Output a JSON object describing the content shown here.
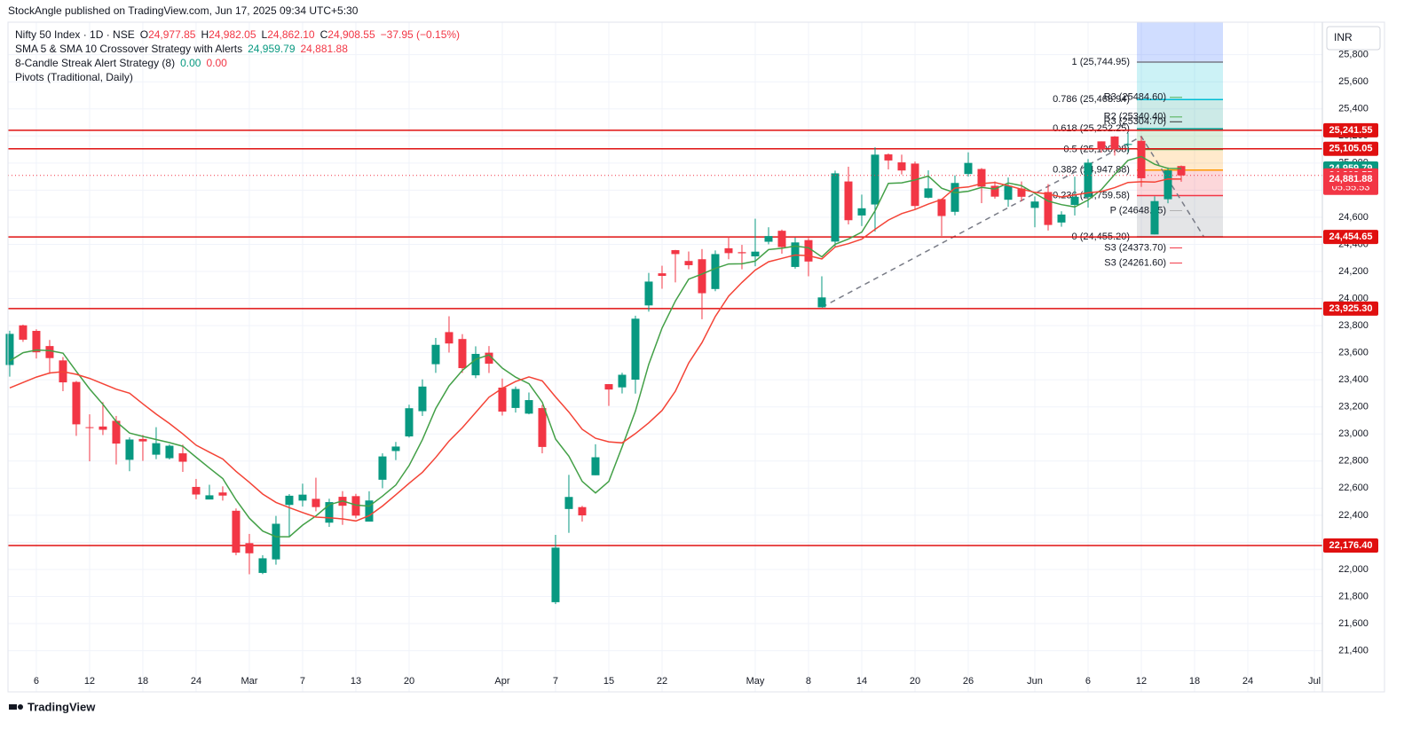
{
  "header": {
    "publisher": "StockAngle published on TradingView.com, Jun 17, 2025 09:34 UTC+5:30"
  },
  "legend": {
    "symbol": "Nifty 50 Index · 1D · NSE",
    "quote": [
      {
        "key": "O",
        "value": "24,977.85"
      },
      {
        "key": "H",
        "value": "24,982.05"
      },
      {
        "key": "L",
        "value": "24,862.10"
      },
      {
        "key": "C",
        "value": "24,908.55"
      }
    ],
    "change": "−37.95 (−0.15%)",
    "indicators": [
      {
        "name": "SMA 5 & SMA 10 Crossover Strategy with Alerts",
        "values": [
          "24,959.79",
          "24,881.88"
        ]
      },
      {
        "name": "8-Candle Streak Alert Strategy (8)",
        "values": [
          "0.00",
          "0.00"
        ]
      },
      {
        "name": "Pivots (Traditional, Daily)",
        "values": []
      }
    ]
  },
  "currency": "INR",
  "footer": "TradingView",
  "chart_data": {
    "type": "candlestick",
    "up_color": "#089981",
    "down_color": "#f23645",
    "open": [
      23509,
      23802,
      23761,
      23649,
      23543,
      23384,
      23050,
      23055,
      23097,
      22809,
      22963,
      22847,
      22821,
      22857,
      22609,
      22516,
      22568,
      22433,
      22194,
      21974,
      22074,
      22476,
      22508,
      22521,
      22345,
      22536,
      22541,
      22353,
      22662,
      22874,
      22982,
      23168,
      23515,
      23752,
      23701,
      23433,
      23600,
      23342,
      23192,
      23150,
      23191,
      21758,
      22446,
      22460,
      22695,
      23368,
      23344,
      23401,
      23949,
      24186,
      24357,
      24277,
      24290,
      24070,
      24371,
      24342,
      24311,
      24419,
      24500,
      24233,
      24431,
      23935,
      24420,
      24864,
      24613,
      24694,
      25064,
      25005,
      24996,
      24744,
      24734,
      24640,
      24919,
      24956,
      24832,
      24729,
      24812,
      24669,
      24786,
      24561,
      24691,
      24748,
      25160,
      25196,
      25134,
      25164,
      24473,
      24733,
      24977.85
    ],
    "high": [
      23762,
      23807,
      23773,
      23694,
      23568,
      23391,
      23145,
      23235,
      23133,
      22975,
      22993,
      23050,
      22923,
      22921,
      22668,
      22625,
      22613,
      22450,
      22262,
      22105,
      22395,
      22556,
      22633,
      22677,
      22522,
      22578,
      22558,
      22577,
      22857,
      22941,
      23216,
      23403,
      23709,
      23869,
      23737,
      23647,
      23649,
      23409,
      23350,
      23306,
      23214,
      22255,
      22698,
      22469,
      22924,
      23368,
      23452,
      23873,
      24189,
      24242,
      24359,
      24347,
      24365,
      24355,
      24457,
      24396,
      24589,
      24526,
      24509,
      24449,
      24447,
      24164,
      24944,
      24973,
      24767,
      25116,
      25071,
      25062,
      25011,
      24946,
      24737,
      24909,
      25079,
      24963,
      24865,
      24893,
      24864,
      24754,
      24845,
      24644,
      24899,
      25029,
      25160,
      25199,
      25223,
      25196,
      24754,
      24968,
      24982.05
    ],
    "low": [
      23423,
      23680,
      23557,
      23443,
      23316,
      22986,
      22798,
      22992,
      22775,
      22725,
      22801,
      22814,
      22812,
      22720,
      22518,
      22517,
      22508,
      22105,
      21964,
      21965,
      22035,
      22245,
      22464,
      22429,
      22314,
      22329,
      22377,
      22353,
      22599,
      22807,
      22973,
      23133,
      23451,
      23601,
      23451,
      23412,
      23450,
      23136,
      23158,
      23145,
      22857,
      21744,
      22270,
      22353,
      22695,
      23207,
      23299,
      23298,
      23903,
      24072,
      24119,
      24216,
      23847,
      24054,
      24290,
      24216,
      24238,
      24400,
      24331,
      24220,
      24164,
      23935,
      24378,
      24547,
      24535,
      24494,
      24953,
      24916,
      24655,
      24739,
      24462,
      24614,
      24900,
      24704,
      24737,
      24677,
      24717,
      24526,
      24502,
      24530,
      24613,
      24671,
      25078,
      25055,
      25081,
      24824,
      24473,
      24703,
      24862.1
    ],
    "close": [
      23739,
      23696,
      23603,
      23560,
      23381,
      23071,
      23045,
      23031,
      22929,
      22959,
      22945,
      22932,
      22913,
      22795,
      22553,
      22547,
      22545,
      22124,
      22119,
      22082,
      22337,
      22544,
      22552,
      22460,
      22497,
      22470,
      22397,
      22509,
      22834,
      22907,
      23190,
      23350,
      23658,
      23668,
      23486,
      23591,
      23519,
      23165,
      23332,
      23250,
      22904,
      22161,
      22535,
      22399,
      22828,
      23328,
      23437,
      23851,
      24125,
      24167,
      24328,
      24246,
      24039,
      24328,
      24335,
      24334,
      24346,
      24461,
      24380,
      24414,
      24273,
      24008,
      24924,
      24578,
      24666,
      25062,
      25019,
      24945,
      24683,
      24813,
      24609,
      24853,
      25001,
      24826,
      24752,
      24833,
      24751,
      24716,
      24543,
      24620,
      24751,
      25003,
      25103,
      25104,
      25141,
      24888,
      24719,
      24946,
      24908.55
    ],
    "series": [
      {
        "name": "SMA 5",
        "color": "#43a047",
        "values": [
          23540,
          23600,
          23620,
          23615,
          23596,
          23462,
          23332,
          23218,
          23091,
          23007,
          22982,
          22959,
          22936,
          22909,
          22828,
          22748,
          22671,
          22513,
          22378,
          22283,
          22241,
          22241,
          22327,
          22395,
          22478,
          22505,
          22475,
          22467,
          22541,
          22623,
          22767,
          22958,
          23188,
          23355,
          23470,
          23551,
          23584,
          23486,
          23419,
          23371,
          23234,
          22962,
          22836,
          22650,
          22565,
          22650,
          22905,
          23169,
          23514,
          23782,
          23982,
          24143,
          24181,
          24222,
          24255,
          24256,
          24276,
          24361,
          24371,
          24387,
          24375,
          24307,
          24400,
          24439,
          24490,
          24648,
          24850,
          24854,
          24875,
          24904,
          24814,
          24781,
          24792,
          24820,
          24808,
          24853,
          24833,
          24776,
          24719,
          24693,
          24676,
          24727,
          24804,
          24916,
          25020,
          25048,
          24991,
          24960,
          24959.79
        ]
      },
      {
        "name": "SMA 10",
        "color": "#f44336",
        "values": [
          23340,
          23380,
          23420,
          23450,
          23460,
          23440,
          23410,
          23370,
          23330,
          23301,
          23222,
          23146,
          23077,
          23000,
          22917,
          22865,
          22815,
          22724,
          22643,
          22556,
          22495,
          22456,
          22420,
          22386,
          22381,
          22373,
          22358,
          22397,
          22468,
          22551,
          22636,
          22717,
          22827,
          22948,
          23047,
          23159,
          23271,
          23337,
          23387,
          23421,
          23392,
          23273,
          23161,
          23034,
          22968,
          22942,
          22934,
          23003,
          23082,
          23174,
          23316,
          23524,
          23675,
          23868,
          24018,
          24119,
          24210,
          24271,
          24296,
          24321,
          24316,
          24292,
          24380,
          24405,
          24438,
          24511,
          24579,
          24627,
          24657,
          24697,
          24731,
          24815,
          24823,
          24848,
          24856,
          24833,
          24807,
          24784,
          24770,
          24750,
          24765,
          24780,
          24790,
          24818,
          24857,
          24862,
          24859,
          24882,
          24881.88
        ]
      }
    ],
    "xlim": [
      -0.13,
      98.6
    ],
    "xticks": [
      {
        "value": 2,
        "label": "6"
      },
      {
        "value": 6,
        "label": "12"
      },
      {
        "value": 10,
        "label": "18"
      },
      {
        "value": 14,
        "label": "24"
      },
      {
        "value": 18,
        "label": "Mar"
      },
      {
        "value": 22,
        "label": "7"
      },
      {
        "value": 26,
        "label": "13"
      },
      {
        "value": 30,
        "label": "20"
      },
      {
        "value": 37,
        "label": "Apr"
      },
      {
        "value": 41,
        "label": "7"
      },
      {
        "value": 45,
        "label": "15"
      },
      {
        "value": 49,
        "label": "22"
      },
      {
        "value": 56,
        "label": "May"
      },
      {
        "value": 60,
        "label": "8"
      },
      {
        "value": 64,
        "label": "14"
      },
      {
        "value": 68,
        "label": "20"
      },
      {
        "value": 72,
        "label": "26"
      },
      {
        "value": 77,
        "label": "Jun"
      },
      {
        "value": 81,
        "label": "6"
      },
      {
        "value": 85,
        "label": "12"
      },
      {
        "value": 89,
        "label": "18"
      },
      {
        "value": 93,
        "label": "24"
      },
      {
        "value": 98,
        "label": "Jul"
      }
    ],
    "ylim": [
      21240,
      26040
    ],
    "yticks": [
      {
        "value": 21400,
        "label": "21,400"
      },
      {
        "value": 21600,
        "label": "21,600"
      },
      {
        "value": 21800,
        "label": "21,800"
      },
      {
        "value": 22000,
        "label": "22,000"
      },
      {
        "value": 22200,
        "label": "22,200"
      },
      {
        "value": 22400,
        "label": "22,400"
      },
      {
        "value": 22600,
        "label": "22,600"
      },
      {
        "value": 22800,
        "label": "22,800"
      },
      {
        "value": 23000,
        "label": "23,000"
      },
      {
        "value": 23200,
        "label": "23,200"
      },
      {
        "value": 23400,
        "label": "23,400"
      },
      {
        "value": 23600,
        "label": "23,600"
      },
      {
        "value": 23800,
        "label": "23,800"
      },
      {
        "value": 24000,
        "label": "24,000"
      },
      {
        "value": 24200,
        "label": "24,200"
      },
      {
        "value": 24400,
        "label": "24,400"
      },
      {
        "value": 24600,
        "label": "24,600"
      },
      {
        "value": 24800,
        "label": "24,800"
      },
      {
        "value": 25000,
        "label": "25,000"
      },
      {
        "value": 25200,
        "label": "25,200"
      },
      {
        "value": 25400,
        "label": "25,400"
      },
      {
        "value": 25600,
        "label": "25,600"
      },
      {
        "value": 25800,
        "label": "25,800"
      }
    ],
    "grid": true,
    "hlines": [
      {
        "value": 25241.55,
        "label": "25,241.55"
      },
      {
        "value": 25105.05,
        "label": "25,105.05"
      },
      {
        "value": 24454.65,
        "label": "24,454.65"
      },
      {
        "value": 23925.3,
        "label": "23,925.30"
      },
      {
        "value": 22176.4,
        "label": "22,176.40"
      }
    ],
    "hline_color": "#e01010",
    "last_tags": [
      {
        "value": 24959.79,
        "label": "24,959.79",
        "color": "#089981"
      },
      {
        "value": 24908.55,
        "label": "24,908.55",
        "color": "#f23645",
        "countdown": "05:55:53"
      },
      {
        "value": 24881.88,
        "label": "24,881.88",
        "color": "#f23645"
      }
    ],
    "fib": {
      "start": 85,
      "end": 91,
      "levels": [
        {
          "value": 25744.95,
          "label": "1 (25,744.95)",
          "color": "#787b86"
        },
        {
          "value": 25468.94,
          "label": "0.786 (25,468.94)",
          "color": "#00bcd4"
        },
        {
          "value": 25252.25,
          "label": "0.618 (25,252.25)",
          "color": "#009688"
        },
        {
          "value": 25100.08,
          "label": "0.5 (25,100.08)",
          "color": "#4caf50"
        },
        {
          "value": 24947.88,
          "label": "0.382 (24,947.88)",
          "color": "#ff9800"
        },
        {
          "value": 24759.58,
          "label": "0.236 (24,759.58)",
          "color": "#f23645"
        },
        {
          "value": 24455.2,
          "label": "0 (24,455.20)",
          "color": "#787b86"
        }
      ]
    },
    "pivots": [
      {
        "value": 25484.6,
        "label": "R3 (25484.60)",
        "color": "#4caf50"
      },
      {
        "value": 25340.4,
        "label": "R2 (25340.40)",
        "color": "#4caf50"
      },
      {
        "value": 25304.7,
        "label": "R3 (25304.70)",
        "color": "#333333"
      },
      {
        "value": 24648.65,
        "label": "P (24648.65)",
        "color": "#b0b0b0"
      },
      {
        "value": 24373.7,
        "label": "S3 (24373.70)",
        "color": "#f23645"
      },
      {
        "value": 24261.6,
        "label": "S3 (24261.60)",
        "color": "#f23645"
      }
    ],
    "trend": {
      "x": [
        61,
        85,
        89.7
      ],
      "values": [
        23935,
        25196,
        24455
      ]
    }
  }
}
